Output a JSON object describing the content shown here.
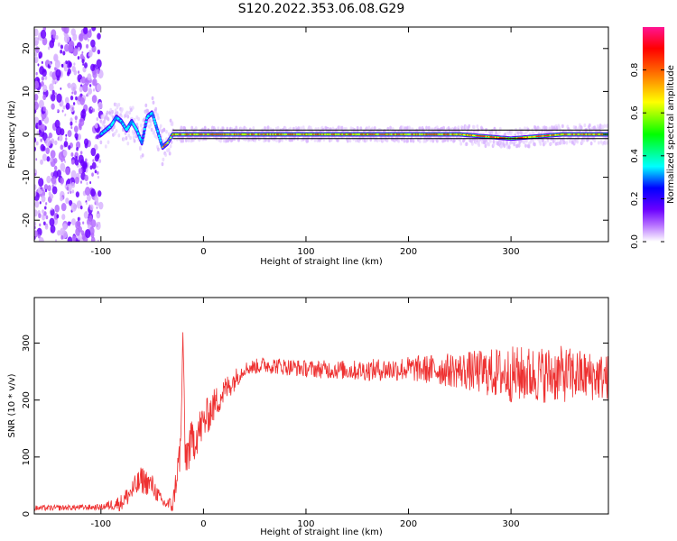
{
  "title": "S120.2022.353.06.08.G29",
  "chart_data": [
    {
      "type": "heatmap",
      "xlabel": "Height of straight line (km)",
      "ylabel": "Frequency (Hz)",
      "xlim": [
        -165,
        395
      ],
      "ylim": [
        -25,
        25
      ],
      "xticks": [
        -100,
        0,
        100,
        200,
        300
      ],
      "yticks": [
        -20,
        -10,
        0,
        10,
        20
      ],
      "colorbar": {
        "label": "Normalized spectral amplitude",
        "range": [
          0,
          1
        ],
        "ticks": [
          "0.0",
          "0.2",
          "0.4",
          "0.6",
          "0.8"
        ],
        "colors": [
          "#ffffff",
          "#8b00ff",
          "#0000ff",
          "#00ffff",
          "#00ff00",
          "#ffff00",
          "#ff8000",
          "#ff0000",
          "#ff1493"
        ]
      },
      "reference_band": {
        "y_min": -1,
        "y_max": 1,
        "x_start": -30
      },
      "trace": {
        "x": [
          -100,
          -90,
          -85,
          -80,
          -75,
          -70,
          -65,
          -60,
          -55,
          -50,
          -45,
          -40,
          -35,
          -30,
          -20,
          0,
          50,
          100,
          150,
          200,
          250,
          300,
          350,
          395
        ],
        "y": [
          0,
          2,
          4,
          3,
          1,
          3,
          1,
          -2,
          4,
          5,
          1,
          -3,
          -2,
          0,
          0,
          0,
          0,
          0,
          0,
          0,
          0,
          -1,
          0,
          0
        ]
      },
      "noise_region": {
        "x": [
          -165,
          -100
        ],
        "y": [
          -25,
          25
        ]
      }
    },
    {
      "type": "line",
      "xlabel": "Height of straight line (km)",
      "ylabel": "SNR (10 * v/v)",
      "xlim": [
        -165,
        395
      ],
      "ylim": [
        0,
        380
      ],
      "xticks": [
        -100,
        0,
        100,
        200,
        300
      ],
      "yticks": [
        0,
        100,
        200,
        300
      ],
      "color": "#ee3030",
      "envelope": {
        "x": [
          -165,
          -100,
          -80,
          -70,
          -60,
          -50,
          -40,
          -30,
          -22,
          -20,
          -18,
          -10,
          0,
          10,
          20,
          30,
          40,
          60,
          100,
          150,
          200,
          250,
          300,
          350,
          395
        ],
        "y": [
          10,
          12,
          20,
          40,
          60,
          50,
          20,
          15,
          120,
          330,
          100,
          130,
          160,
          190,
          215,
          235,
          255,
          262,
          255,
          252,
          255,
          252,
          245,
          245,
          240
        ],
        "noise": [
          5,
          5,
          15,
          20,
          25,
          20,
          10,
          15,
          40,
          10,
          40,
          40,
          35,
          30,
          25,
          20,
          12,
          15,
          15,
          18,
          22,
          32,
          50,
          50,
          40
        ]
      }
    }
  ]
}
